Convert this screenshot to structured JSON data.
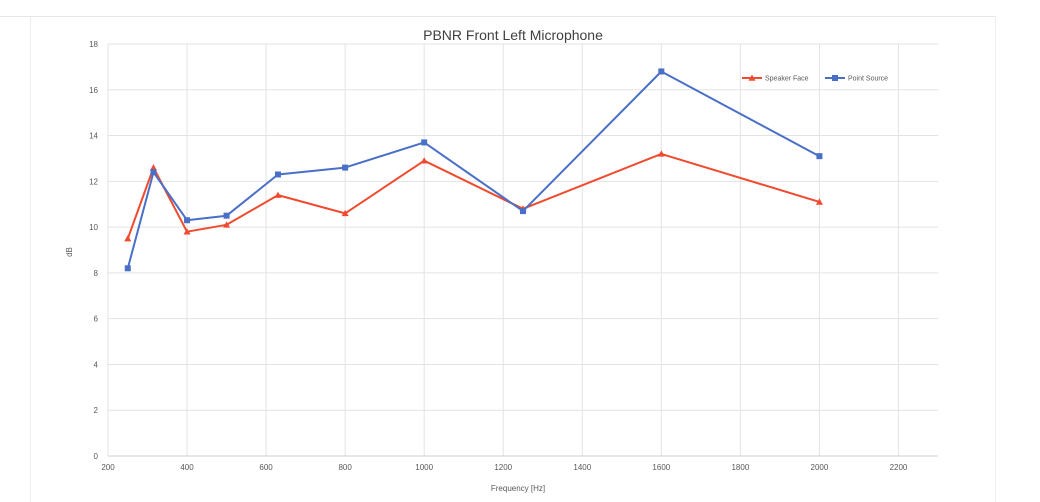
{
  "colors": {
    "speaker_face": "#f04a2f",
    "point_source": "#4a6fc6",
    "grid": "#e3e3e3"
  },
  "chart_data": {
    "type": "line",
    "title": "PBNR Front Left Microphone",
    "xlabel": "Frequency [Hz]",
    "ylabel": "dB",
    "xlim": [
      200,
      2300
    ],
    "ylim": [
      0,
      18
    ],
    "x_ticks": [
      200,
      400,
      600,
      800,
      1000,
      1200,
      1400,
      1600,
      1800,
      2000,
      2200
    ],
    "y_ticks": [
      0,
      2,
      4,
      6,
      8,
      10,
      12,
      14,
      16,
      18
    ],
    "grid": true,
    "legend_position": "top-right",
    "series": [
      {
        "name": "Speaker Face",
        "marker": "triangle",
        "color": "#f04a2f",
        "x": [
          250,
          315,
          400,
          500,
          630,
          800,
          1000,
          1250,
          1600,
          2000
        ],
        "y": [
          9.5,
          12.6,
          9.8,
          10.1,
          11.4,
          10.6,
          12.9,
          10.8,
          13.2,
          11.1
        ]
      },
      {
        "name": "Point Source",
        "marker": "square",
        "color": "#4a6fc6",
        "x": [
          250,
          315,
          400,
          500,
          630,
          800,
          1000,
          1250,
          1600,
          2000
        ],
        "y": [
          8.2,
          12.4,
          10.3,
          10.5,
          12.3,
          12.6,
          13.7,
          10.7,
          16.8,
          13.1
        ]
      }
    ]
  }
}
